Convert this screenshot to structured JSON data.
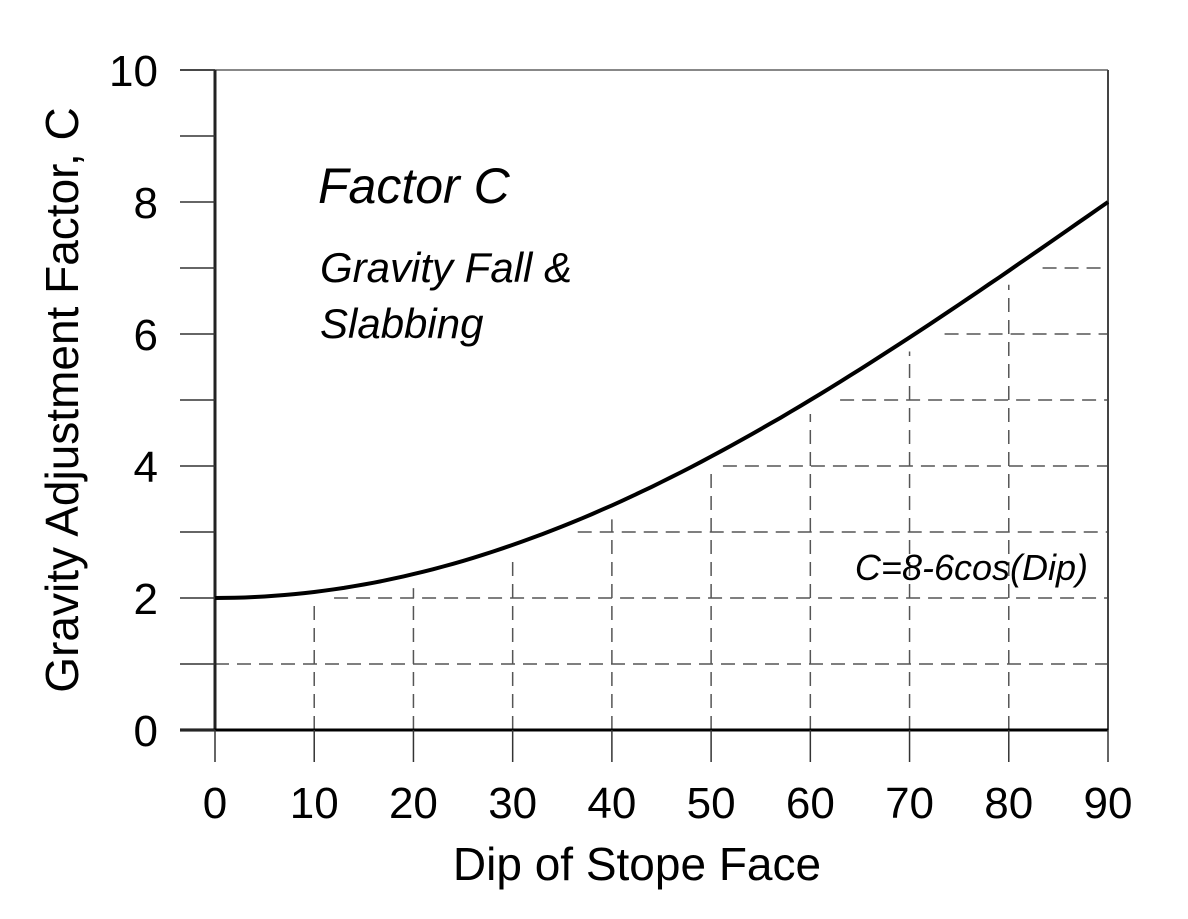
{
  "chart_data": {
    "type": "line",
    "xlabel": "Dip of Stope Face",
    "ylabel": "Gravity Adjustment Factor, C",
    "xlim": [
      0,
      90
    ],
    "ylim": [
      0,
      10
    ],
    "xticks": [
      "0",
      "10",
      "20",
      "30",
      "40",
      "50",
      "60",
      "70",
      "80",
      "90"
    ],
    "yticks": [
      "0",
      "2",
      "4",
      "6",
      "8",
      "10"
    ],
    "grid": "dashed, below curve",
    "annotations": {
      "title": "Factor C",
      "subtitle_line1": "Gravity Fall &",
      "subtitle_line2": "Slabbing",
      "equation": "C=8-6cos(Dip)"
    },
    "series": [
      {
        "x": [
          0,
          10,
          20,
          30,
          40,
          50,
          60,
          70,
          80,
          90
        ],
        "y": [
          2.0,
          2.09,
          2.36,
          2.8,
          3.4,
          4.14,
          5.0,
          5.95,
          6.96,
          8.0
        ]
      }
    ],
    "colors": {
      "curve": "#000000",
      "grid": "#555555",
      "equation": "#666666"
    }
  }
}
